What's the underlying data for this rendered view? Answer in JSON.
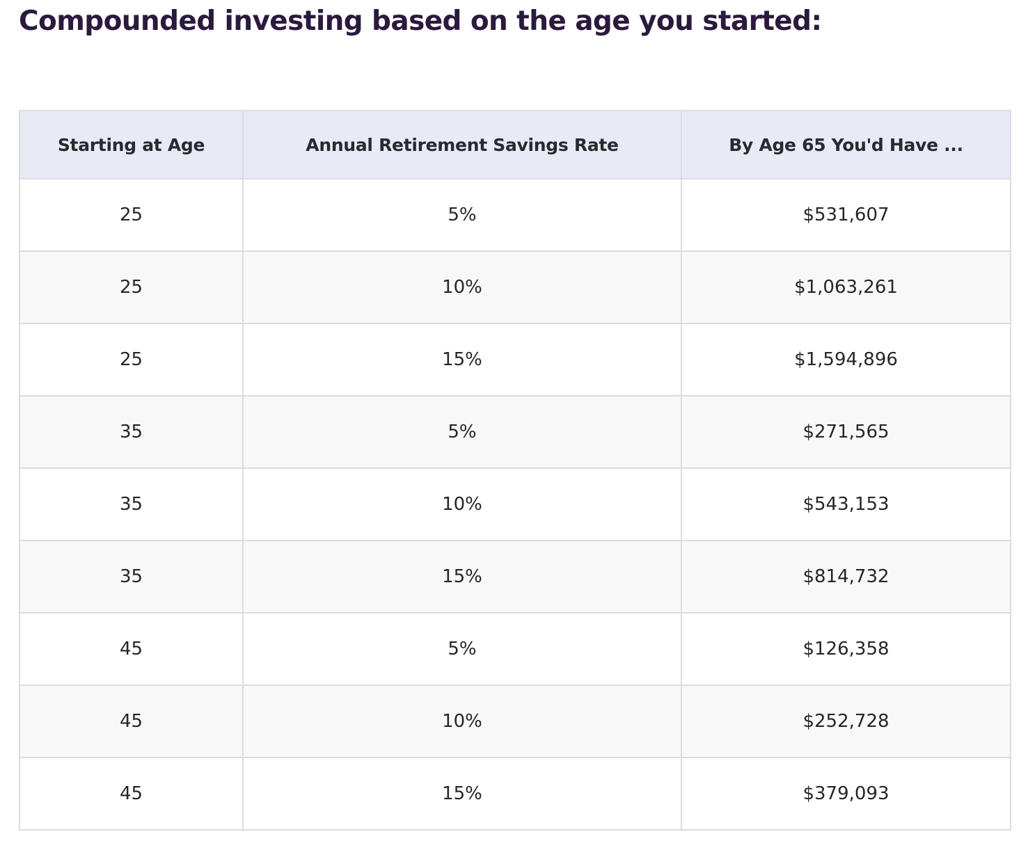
{
  "heading": "Compounded investing based on the age you started:",
  "table": {
    "headers": [
      "Starting at Age",
      "Annual Retirement Savings Rate",
      "By Age 65 You'd Have ..."
    ],
    "rows": [
      [
        "25",
        "5%",
        "$531,607"
      ],
      [
        "25",
        "10%",
        "$1,063,261"
      ],
      [
        "25",
        "15%",
        "$1,594,896"
      ],
      [
        "35",
        "5%",
        "$271,565"
      ],
      [
        "35",
        "10%",
        "$543,153"
      ],
      [
        "35",
        "15%",
        "$814,732"
      ],
      [
        "45",
        "5%",
        "$126,358"
      ],
      [
        "45",
        "10%",
        "$252,728"
      ],
      [
        "45",
        "15%",
        "$379,093"
      ]
    ]
  },
  "colors": {
    "heading": "#2b1a3d",
    "header_background": "#e8eaf6",
    "row_alt_background": "#f8f8f8",
    "border": "#dcdce0"
  }
}
